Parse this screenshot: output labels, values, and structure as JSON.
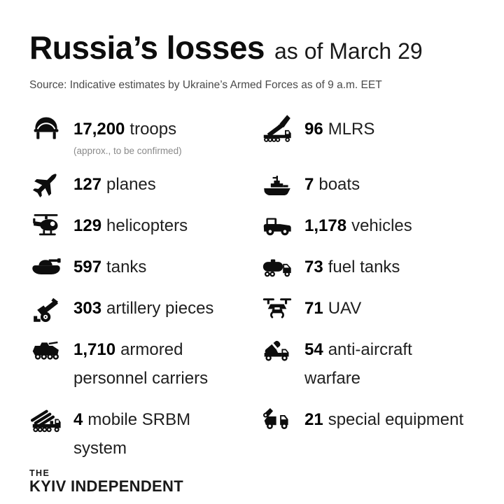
{
  "header": {
    "title": "Russia’s losses",
    "subtitle": "as of March 29",
    "source": "Source: Indicative estimates by Ukraine’s Armed Forces as of 9 a.m. EET"
  },
  "colors": {
    "background": "#ffffff",
    "text": "#111111",
    "muted_source": "#4a4a4a",
    "note_gray": "#8a8a8a",
    "icon_black": "#0d0d0d"
  },
  "columns": {
    "left": [
      {
        "value": "17,200",
        "label": "troops",
        "note": "(approx., to be confirmed)",
        "icon": "helmet-icon"
      },
      {
        "value": "127",
        "label": "planes",
        "icon": "fighter-jet-icon"
      },
      {
        "value": "129",
        "label": "helicopters",
        "icon": "helicopter-icon"
      },
      {
        "value": "597",
        "label": "tanks",
        "icon": "tank-icon"
      },
      {
        "value": "303",
        "label": "artillery pieces",
        "icon": "artillery-icon"
      },
      {
        "value": "1,710",
        "label": "armored\npersonnel carriers",
        "icon": "apc-icon"
      },
      {
        "value": "4",
        "label": "mobile SRBM\nsystem",
        "icon": "srbm-launcher-icon"
      }
    ],
    "right": [
      {
        "value": "96",
        "label": "MLRS",
        "icon": "mlrs-icon"
      },
      {
        "value": "7",
        "label": "boats",
        "icon": "boat-icon"
      },
      {
        "value": "1,178",
        "label": "vehicles",
        "icon": "jeep-icon"
      },
      {
        "value": "73",
        "label": "fuel tanks",
        "icon": "fuel-truck-icon"
      },
      {
        "value": "71",
        "label": "UAV",
        "icon": "drone-icon"
      },
      {
        "value": "54",
        "label": "anti-aircraft\nwarfare",
        "icon": "anti-aircraft-icon"
      },
      {
        "value": "21",
        "label": "special equipment",
        "icon": "special-equipment-icon"
      }
    ]
  },
  "footer": {
    "logo_top": "THE",
    "logo_main": "KYIV INDEPENDENT"
  }
}
